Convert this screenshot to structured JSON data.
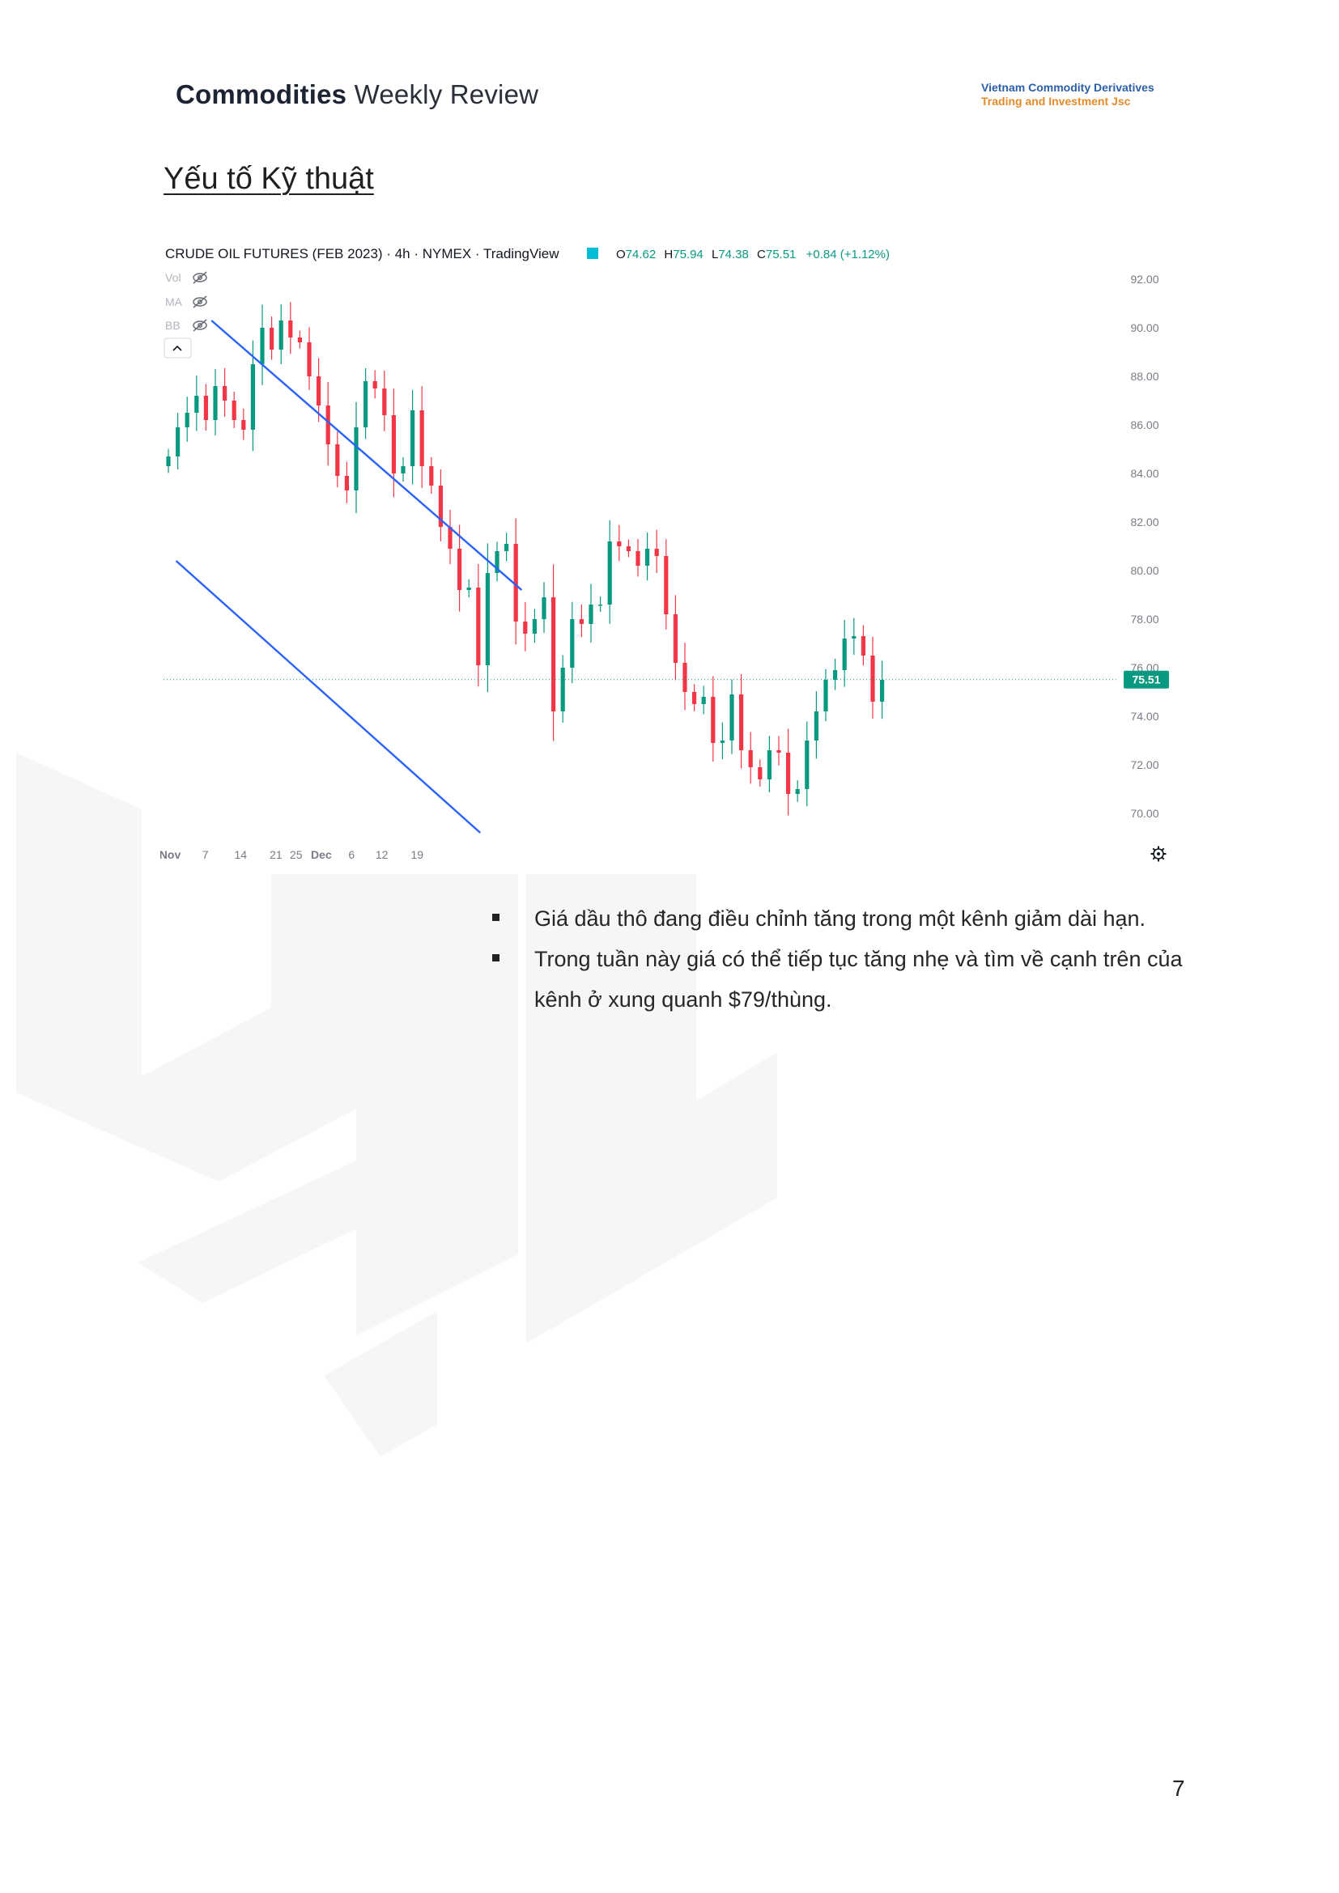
{
  "header": {
    "title_bold": "Commodities",
    "title_light": "Weekly Review",
    "company_line1": "Vietnam Commodity Derivatives",
    "company_line2": "Trading and Investment Jsc"
  },
  "section_title": "Yếu tố Kỹ thuật",
  "chart_data": {
    "type": "candlestick",
    "title": "CRUDE OIL FUTURES (FEB 2023) · 4h · NYMEX · TradingView",
    "ohlc_readout": {
      "o_label": "O",
      "o": "74.62",
      "h_label": "H",
      "h": "75.94",
      "l_label": "L",
      "l": "74.38",
      "c_label": "C",
      "c": "75.51",
      "change": "+0.84 (+1.12%)"
    },
    "indicators": [
      "Vol",
      "MA",
      "BB"
    ],
    "y_ticks": [
      "92.00",
      "90.00",
      "88.00",
      "86.00",
      "84.00",
      "82.00",
      "80.00",
      "78.00",
      "76.00",
      "74.00",
      "72.00",
      "70.00"
    ],
    "ylim": [
      69.0,
      92.5
    ],
    "x_ticks": [
      {
        "label": "Nov",
        "day": 0
      },
      {
        "label": "7",
        "day": 7
      },
      {
        "label": "14",
        "day": 14
      },
      {
        "label": "21",
        "day": 21
      },
      {
        "label": "25",
        "day": 25
      },
      {
        "label": "Dec",
        "day": 30
      },
      {
        "label": "6",
        "day": 36
      },
      {
        "label": "12",
        "day": 42
      },
      {
        "label": "19",
        "day": 49
      }
    ],
    "last_price": "75.51",
    "closes": [
      84.7,
      85.9,
      86.5,
      87.2,
      86.2,
      87.6,
      87.0,
      86.2,
      85.8,
      88.5,
      90.0,
      89.1,
      90.3,
      89.6,
      89.4,
      88.0,
      86.8,
      85.2,
      83.9,
      83.3,
      85.9,
      87.8,
      87.5,
      86.4,
      84.0,
      84.3,
      86.6,
      84.3,
      83.5,
      81.8,
      80.9,
      79.2,
      79.3,
      76.1,
      79.9,
      80.8,
      81.1,
      77.9,
      77.4,
      78.0,
      78.9,
      74.2,
      76.0,
      78.0,
      77.8,
      78.6,
      78.6,
      81.2,
      81.0,
      80.8,
      80.2,
      80.9,
      80.6,
      78.2,
      76.2,
      75.0,
      74.5,
      74.8,
      72.9,
      73.0,
      74.9,
      72.6,
      71.9,
      71.4,
      72.6,
      72.5,
      70.8,
      71.0,
      73.0,
      74.2,
      75.5,
      75.9,
      77.2,
      77.3,
      76.5,
      74.6,
      75.5
    ],
    "channel": {
      "upper": [
        {
          "day": 9.5,
          "price": 90.3
        },
        {
          "day": 71.0,
          "price": 79.2
        }
      ],
      "lower": [
        {
          "day": 2.5,
          "price": 80.4
        },
        {
          "day": 62.8,
          "price": 69.2
        }
      ]
    }
  },
  "bullets": [
    "Giá dầu thô đang điều chỉnh tăng trong một kênh giảm dài hạn.",
    "Trong tuần này giá có thể tiếp tục tăng nhẹ và tìm về cạnh trên của kênh ở xung quanh $79/thùng."
  ],
  "page_number": "7"
}
